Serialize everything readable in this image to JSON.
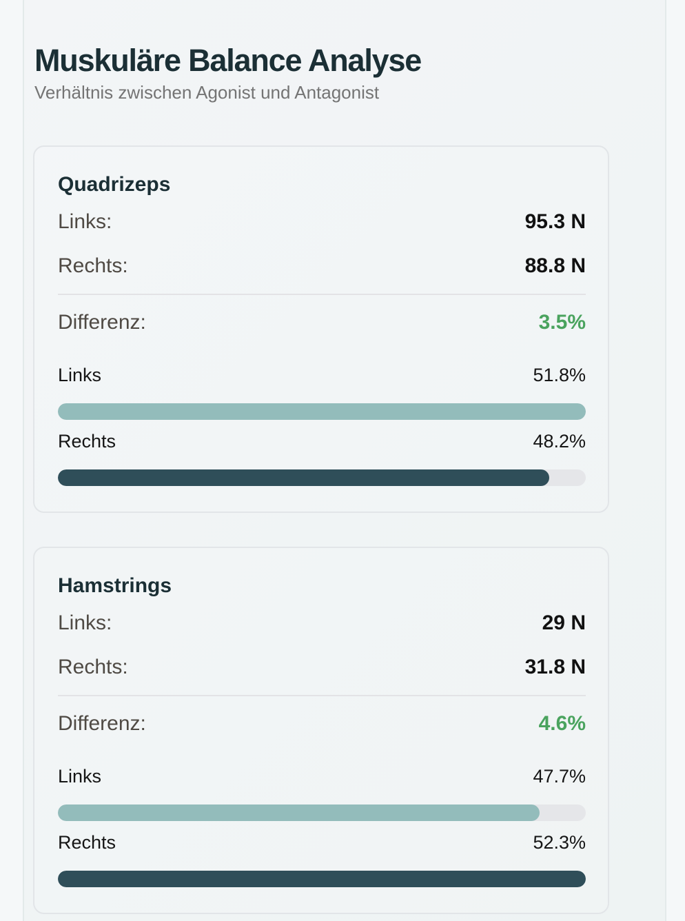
{
  "header": {
    "title": "Muskuläre Balance Analyse",
    "subtitle": "Verhältnis zwischen Agonist und Antagonist"
  },
  "colors": {
    "left_bar": "#93bcbb",
    "right_bar": "#2f4e59",
    "track": "#e5e6e9",
    "diff_ok": "#4aa35e"
  },
  "muscles": [
    {
      "name": "Quadrizeps",
      "links_label": "Links:",
      "links_value": "95.3 N",
      "rechts_label": "Rechts:",
      "rechts_value": "88.8 N",
      "diff_label": "Differenz:",
      "diff_value": "3.5%",
      "bar_left_label": "Links",
      "bar_left_pct_text": "51.8%",
      "bar_left_pct": 51.8,
      "bar_right_label": "Rechts",
      "bar_right_pct_text": "48.2%",
      "bar_right_pct": 48.2
    },
    {
      "name": "Hamstrings",
      "links_label": "Links:",
      "links_value": "29 N",
      "rechts_label": "Rechts:",
      "rechts_value": "31.8 N",
      "diff_label": "Differenz:",
      "diff_value": "4.6%",
      "bar_left_label": "Links",
      "bar_left_pct_text": "47.7%",
      "bar_left_pct": 47.7,
      "bar_right_label": "Rechts",
      "bar_right_pct_text": "52.3%",
      "bar_right_pct": 52.3
    }
  ]
}
